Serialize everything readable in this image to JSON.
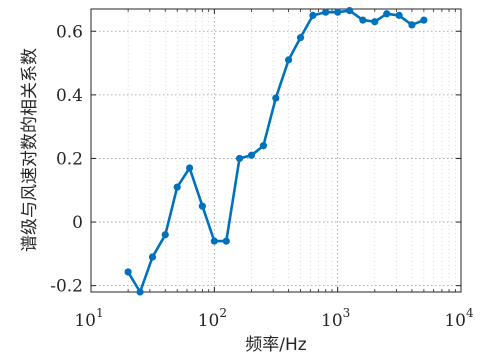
{
  "chart_data": {
    "type": "line",
    "title": "",
    "xlabel": "频率/Hz",
    "ylabel": "谱级与风速对数的相关系数",
    "xscale": "log",
    "xlim": [
      10,
      10000
    ],
    "ylim": [
      -0.22,
      0.67
    ],
    "grid": true,
    "x_ticks": [
      {
        "value": 10,
        "base": "10",
        "exp": "1"
      },
      {
        "value": 100,
        "base": "10",
        "exp": "2"
      },
      {
        "value": 1000,
        "base": "10",
        "exp": "3"
      },
      {
        "value": 10000,
        "base": "10",
        "exp": "4"
      }
    ],
    "y_ticks": [
      {
        "value": -0.2,
        "label": "-0.2"
      },
      {
        "value": 0,
        "label": "0"
      },
      {
        "value": 0.2,
        "label": "0.2"
      },
      {
        "value": 0.4,
        "label": "0.4"
      },
      {
        "value": 0.6,
        "label": "0.6"
      }
    ],
    "series": [
      {
        "color": "#0072BD",
        "points": [
          [
            20,
            -0.157
          ],
          [
            25,
            -0.22
          ],
          [
            31.5,
            -0.11
          ],
          [
            40,
            -0.04
          ],
          [
            50,
            0.11
          ],
          [
            63,
            0.17
          ],
          [
            80,
            0.05
          ],
          [
            100,
            -0.06
          ],
          [
            125,
            -0.06
          ],
          [
            160,
            0.2
          ],
          [
            200,
            0.21
          ],
          [
            250,
            0.24
          ],
          [
            315,
            0.39
          ],
          [
            400,
            0.51
          ],
          [
            500,
            0.58
          ],
          [
            630,
            0.65
          ],
          [
            800,
            0.66
          ],
          [
            1000,
            0.66
          ],
          [
            1250,
            0.665
          ],
          [
            1600,
            0.635
          ],
          [
            2000,
            0.63
          ],
          [
            2500,
            0.655
          ],
          [
            3150,
            0.65
          ],
          [
            4000,
            0.62
          ],
          [
            5000,
            0.635
          ]
        ]
      }
    ]
  }
}
